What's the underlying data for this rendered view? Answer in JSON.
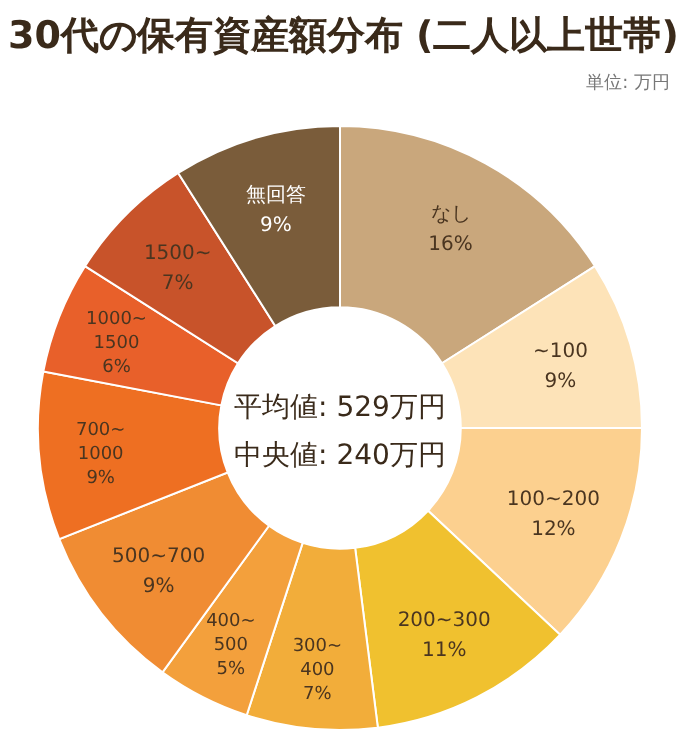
{
  "chart_data": {
    "type": "donut",
    "title": "30代の保有資産額分布 (二人以上世帯)",
    "annotations": [
      "単位: 万円",
      "平均値: 529万円",
      "中央値: 240万円"
    ],
    "categories": [
      "なし",
      "~100",
      "100~200",
      "200~300",
      "300~400",
      "400~500",
      "500~700",
      "700~1000",
      "1000~1500",
      "1500~",
      "無回答"
    ],
    "values": [
      16,
      9,
      12,
      11,
      7,
      5,
      9,
      9,
      6,
      7,
      9
    ],
    "value_labels": [
      "16%",
      "9%",
      "12%",
      "11%",
      "7%",
      "5%",
      "9%",
      "9%",
      "6%",
      "7%",
      "9%"
    ],
    "colors": [
      "#c9a77c",
      "#fde3b8",
      "#fcd08f",
      "#f0c12f",
      "#f2ad3a",
      "#f3a03c",
      "#f08c33",
      "#ee6f22",
      "#e8602a",
      "#c8532a",
      "#7a5c3a"
    ]
  }
}
